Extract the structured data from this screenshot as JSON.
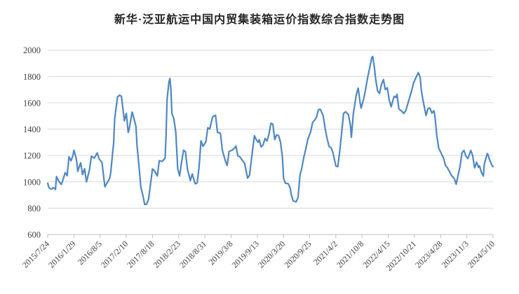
{
  "title": "新华·泛亚航运中国内贸集装箱运价指数综合指数走势图",
  "chart_data": {
    "type": "line",
    "title": "新华·泛亚航运中国内贸集装箱运价指数综合指数走势图",
    "series_name": "综合指数",
    "frequency": "weekly",
    "x_start_date": "2015/7/24",
    "x_end_date": "2024/5/10",
    "x_tick_labels": [
      "2015/7/24",
      "2016/1/29",
      "2016/8/5",
      "2017/2/10",
      "2017/8/18",
      "2018/2/23",
      "2018/8/31",
      "2019/3/8",
      "2019/9/13",
      "2020/3/20",
      "2020/9/25",
      "2021/4/2",
      "2021/10/8",
      "2022/4/15",
      "2022/10/21",
      "2023/4/28",
      "2023/11/3",
      "2024/5/10"
    ],
    "x_tick_weeks": [
      0,
      27,
      54,
      81,
      108,
      135,
      162,
      189,
      216,
      243,
      270,
      297,
      324,
      351,
      378,
      405,
      432,
      459
    ],
    "y_ticks": [
      600,
      800,
      1000,
      1200,
      1400,
      1600,
      1800,
      2000
    ],
    "ylim": [
      600,
      2000
    ],
    "grid": true,
    "legend": "none",
    "line_color": "#4e87c4",
    "grid_color": "#d9d9d9",
    "axis_color": "#bfbfbf",
    "label_color": "#404040",
    "points": [
      [
        0,
        990
      ],
      [
        1,
        962
      ],
      [
        2,
        950
      ],
      [
        4,
        945
      ],
      [
        6,
        956
      ],
      [
        8,
        942
      ],
      [
        9,
        1040
      ],
      [
        11,
        1010
      ],
      [
        12,
        1000
      ],
      [
        14,
        980
      ],
      [
        16,
        1020
      ],
      [
        18,
        1070
      ],
      [
        20,
        1046
      ],
      [
        22,
        1190
      ],
      [
        24,
        1160
      ],
      [
        26,
        1200
      ],
      [
        27,
        1240
      ],
      [
        29,
        1190
      ],
      [
        30,
        1150
      ],
      [
        31,
        1080
      ],
      [
        34,
        1145
      ],
      [
        36,
        1055
      ],
      [
        38,
        1100
      ],
      [
        40,
        1000
      ],
      [
        43,
        1090
      ],
      [
        45,
        1195
      ],
      [
        48,
        1180
      ],
      [
        51,
        1220
      ],
      [
        53,
        1175
      ],
      [
        56,
        1145
      ],
      [
        58,
        1020
      ],
      [
        59,
        962
      ],
      [
        61,
        990
      ],
      [
        63,
        1015
      ],
      [
        64,
        1030
      ],
      [
        65,
        1070
      ],
      [
        66,
        1150
      ],
      [
        68,
        1300
      ],
      [
        69,
        1480
      ],
      [
        71,
        1590
      ],
      [
        72,
        1645
      ],
      [
        74,
        1658
      ],
      [
        76,
        1650
      ],
      [
        79,
        1464
      ],
      [
        81,
        1520
      ],
      [
        83,
        1375
      ],
      [
        84,
        1400
      ],
      [
        87,
        1530
      ],
      [
        89,
        1480
      ],
      [
        91,
        1420
      ],
      [
        92,
        1280
      ],
      [
        95,
        1050
      ],
      [
        96,
        960
      ],
      [
        98,
        900
      ],
      [
        100,
        828
      ],
      [
        102,
        830
      ],
      [
        104,
        870
      ],
      [
        105,
        929
      ],
      [
        108,
        1098
      ],
      [
        110,
        1085
      ],
      [
        113,
        1045
      ],
      [
        115,
        1161
      ],
      [
        118,
        1155
      ],
      [
        121,
        1180
      ],
      [
        122,
        1357
      ],
      [
        123,
        1625
      ],
      [
        125,
        1760
      ],
      [
        126,
        1785
      ],
      [
        127,
        1700
      ],
      [
        128,
        1518
      ],
      [
        130,
        1482
      ],
      [
        132,
        1380
      ],
      [
        134,
        1100
      ],
      [
        136,
        1045
      ],
      [
        138,
        1150
      ],
      [
        140,
        1240
      ],
      [
        142,
        1230
      ],
      [
        144,
        1098
      ],
      [
        146,
        1040
      ],
      [
        147,
        1010
      ],
      [
        149,
        1060
      ],
      [
        152,
        985
      ],
      [
        154,
        992
      ],
      [
        156,
        1110
      ],
      [
        158,
        1312
      ],
      [
        160,
        1270
      ],
      [
        163,
        1304
      ],
      [
        165,
        1411
      ],
      [
        167,
        1400
      ],
      [
        170,
        1495
      ],
      [
        173,
        1505
      ],
      [
        175,
        1375
      ],
      [
        178,
        1370
      ],
      [
        180,
        1241
      ],
      [
        183,
        1161
      ],
      [
        185,
        1125
      ],
      [
        187,
        1232
      ],
      [
        190,
        1240
      ],
      [
        193,
        1260
      ],
      [
        194,
        1272
      ],
      [
        196,
        1196
      ],
      [
        198,
        1190
      ],
      [
        201,
        1160
      ],
      [
        203,
        1140
      ],
      [
        206,
        1028
      ],
      [
        208,
        1050
      ],
      [
        211,
        1232
      ],
      [
        213,
        1350
      ],
      [
        215,
        1320
      ],
      [
        217,
        1300
      ],
      [
        218,
        1320
      ],
      [
        220,
        1265
      ],
      [
        222,
        1280
      ],
      [
        224,
        1330
      ],
      [
        226,
        1310
      ],
      [
        228,
        1360
      ],
      [
        230,
        1445
      ],
      [
        232,
        1438
      ],
      [
        234,
        1321
      ],
      [
        236,
        1357
      ],
      [
        238,
        1350
      ],
      [
        240,
        1300
      ],
      [
        242,
        1180
      ],
      [
        243,
        1030
      ],
      [
        245,
        990
      ],
      [
        248,
        985
      ],
      [
        250,
        950
      ],
      [
        251,
        905
      ],
      [
        253,
        855
      ],
      [
        256,
        848
      ],
      [
        258,
        880
      ],
      [
        260,
        1050
      ],
      [
        262,
        1110
      ],
      [
        264,
        1188
      ],
      [
        266,
        1250
      ],
      [
        268,
        1321
      ],
      [
        271,
        1380
      ],
      [
        273,
        1450
      ],
      [
        275,
        1468
      ],
      [
        277,
        1490
      ],
      [
        279,
        1548
      ],
      [
        281,
        1552
      ],
      [
        284,
        1500
      ],
      [
        286,
        1400
      ],
      [
        288,
        1330
      ],
      [
        290,
        1268
      ],
      [
        292,
        1260
      ],
      [
        294,
        1222
      ],
      [
        297,
        1120
      ],
      [
        299,
        1115
      ],
      [
        301,
        1232
      ],
      [
        303,
        1375
      ],
      [
        305,
        1520
      ],
      [
        307,
        1532
      ],
      [
        310,
        1510
      ],
      [
        312,
        1430
      ],
      [
        313,
        1339
      ],
      [
        315,
        1518
      ],
      [
        318,
        1661
      ],
      [
        320,
        1712
      ],
      [
        322,
        1600
      ],
      [
        323,
        1560
      ],
      [
        326,
        1640
      ],
      [
        328,
        1720
      ],
      [
        330,
        1800
      ],
      [
        332,
        1870
      ],
      [
        334,
        1945
      ],
      [
        335,
        1952
      ],
      [
        337,
        1850
      ],
      [
        338,
        1780
      ],
      [
        340,
        1690
      ],
      [
        342,
        1672
      ],
      [
        344,
        1740
      ],
      [
        346,
        1777
      ],
      [
        348,
        1700
      ],
      [
        350,
        1715
      ],
      [
        352,
        1620
      ],
      [
        354,
        1570
      ],
      [
        357,
        1650
      ],
      [
        359,
        1640
      ],
      [
        360,
        1665
      ],
      [
        362,
        1554
      ],
      [
        365,
        1536
      ],
      [
        367,
        1520
      ],
      [
        369,
        1540
      ],
      [
        371,
        1590
      ],
      [
        373,
        1640
      ],
      [
        375,
        1690
      ],
      [
        377,
        1750
      ],
      [
        380,
        1800
      ],
      [
        382,
        1830
      ],
      [
        384,
        1790
      ],
      [
        385,
        1700
      ],
      [
        387,
        1611
      ],
      [
        388,
        1575
      ],
      [
        390,
        1504
      ],
      [
        392,
        1558
      ],
      [
        394,
        1560
      ],
      [
        396,
        1522
      ],
      [
        398,
        1540
      ],
      [
        399,
        1504
      ],
      [
        401,
        1350
      ],
      [
        403,
        1257
      ],
      [
        406,
        1210
      ],
      [
        408,
        1180
      ],
      [
        410,
        1124
      ],
      [
        412,
        1106
      ],
      [
        414,
        1080
      ],
      [
        416,
        1050
      ],
      [
        419,
        1025
      ],
      [
        421,
        982
      ],
      [
        423,
        1050
      ],
      [
        425,
        1120
      ],
      [
        427,
        1221
      ],
      [
        429,
        1239
      ],
      [
        431,
        1195
      ],
      [
        433,
        1177
      ],
      [
        434,
        1195
      ],
      [
        436,
        1239
      ],
      [
        438,
        1200
      ],
      [
        440,
        1106
      ],
      [
        442,
        1150
      ],
      [
        444,
        1110
      ],
      [
        445,
        1122
      ],
      [
        447,
        1071
      ],
      [
        449,
        1044
      ],
      [
        450,
        1133
      ],
      [
        453,
        1215
      ],
      [
        454,
        1205
      ],
      [
        455,
        1175
      ],
      [
        458,
        1124
      ],
      [
        459,
        1115
      ]
    ]
  }
}
